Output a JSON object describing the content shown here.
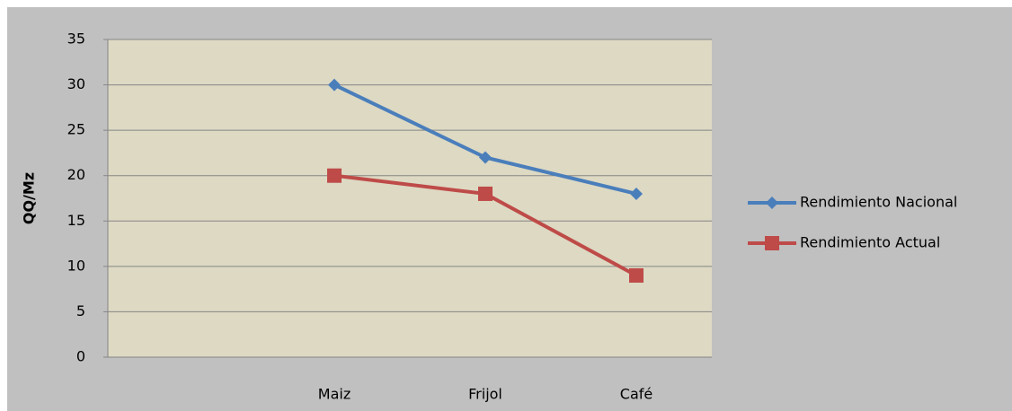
{
  "chart_data": {
    "type": "line",
    "y_label": "QQ/Mz",
    "categories": [
      null,
      "Maiz",
      "Frijol",
      "Café"
    ],
    "series": [
      {
        "name": "Rendimiento Nacional",
        "color": "#4a7ebb",
        "marker": "diamond",
        "values": [
          null,
          30,
          22,
          18
        ]
      },
      {
        "name": "Rendimiento Actual",
        "color": "#be4b48",
        "marker": "square",
        "values": [
          null,
          20,
          18,
          9
        ]
      }
    ],
    "ylim": [
      0,
      35
    ],
    "yticks": [
      0,
      5,
      10,
      15,
      20,
      25,
      30,
      35
    ],
    "grid": true,
    "legend": "right"
  }
}
